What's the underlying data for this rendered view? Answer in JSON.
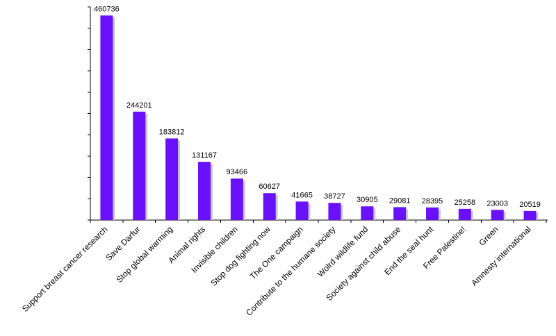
{
  "chart_data": {
    "type": "bar",
    "categories": [
      "Support breast cancer research",
      "Save Darfur",
      "Stop global warming",
      "Animal rights",
      "Invisible children",
      "Stop dog fighting now",
      "The One campaign",
      "Contribute to the humane society",
      "Wolrd wildlife fund",
      "Society against child abuse",
      "End the seal hunt",
      "Free Palestine!",
      "Green",
      "Amnesty international"
    ],
    "values": [
      460736,
      244201,
      183812,
      131167,
      93466,
      60627,
      41665,
      38727,
      30905,
      29081,
      28395,
      25258,
      23003,
      20519
    ],
    "title": "",
    "xlabel": "",
    "ylabel": "",
    "ylim": [
      0,
      480000
    ],
    "grid": false,
    "bar_color": "#6a11fc"
  }
}
